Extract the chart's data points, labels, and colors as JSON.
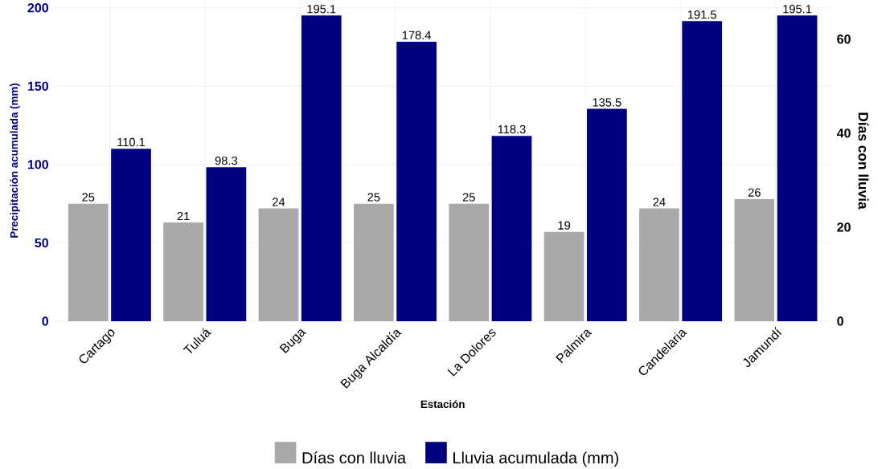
{
  "chart_data": {
    "type": "bar",
    "xlabel": "Estación",
    "ylabel": "Precipitación acumulada (mm)",
    "y2label": "Días con lluvia",
    "categories": [
      "Cartago",
      "Tuluá",
      "Buga",
      "Buga Alcaldía",
      "La Dolores",
      "Palmira",
      "Candelaria",
      "Jamundí"
    ],
    "series": [
      {
        "name": "Días con lluvia",
        "color": "#a9a9a9",
        "axis": "y2",
        "values": [
          25,
          21,
          24,
          25,
          25,
          19,
          24,
          26
        ]
      },
      {
        "name": "Lluvia acumulada (mm)",
        "color": "#000080",
        "values": [
          110.1,
          98.3,
          195.1,
          178.4,
          118.3,
          135.5,
          191.5,
          195.1
        ]
      }
    ],
    "ylim": [
      0,
      205
    ],
    "yticks": [
      0,
      50,
      100,
      150,
      200
    ],
    "y2lim": [
      0,
      68.33
    ],
    "y2ticks": [
      0,
      20,
      40,
      60
    ],
    "data_labels": true,
    "grid": true,
    "legend": "bottom"
  }
}
